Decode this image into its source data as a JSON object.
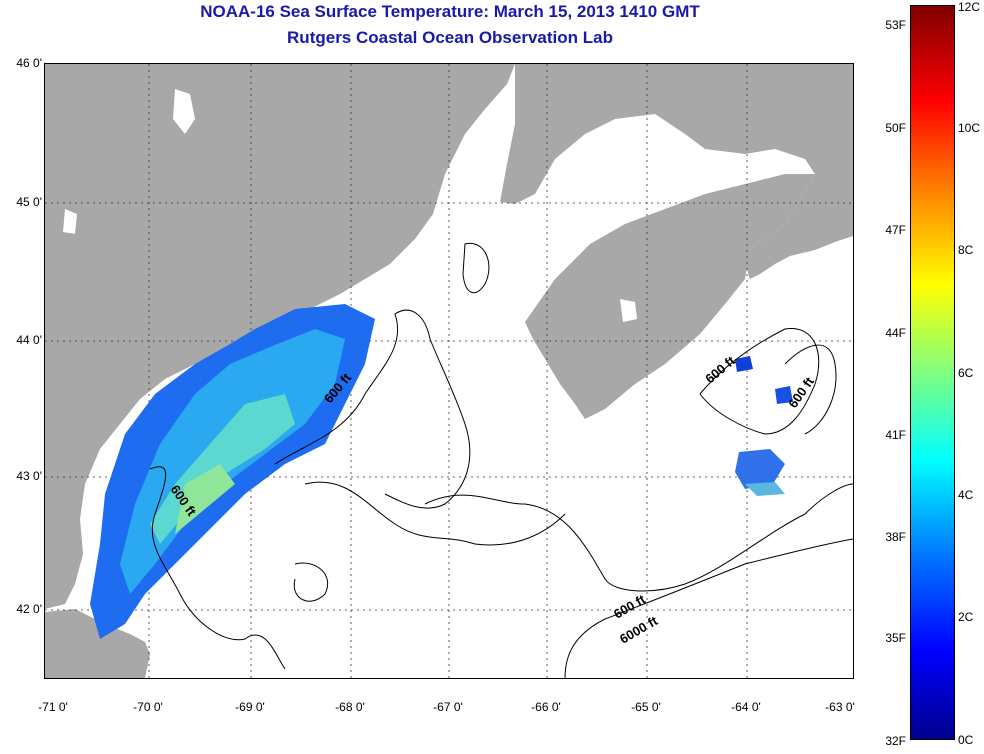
{
  "title": {
    "line1": "NOAA-16 Sea Surface Temperature:  March 15, 2013 1410 GMT",
    "line2": "Rutgers Coastal Ocean Observation Lab"
  },
  "axes": {
    "lat_labels": [
      "46 0'",
      "45 0'",
      "44 0'",
      "43 0'",
      "42 0'"
    ],
    "lon_labels": [
      "-71 0'",
      "-70 0'",
      "-69 0'",
      "-68 0'",
      "-67 0'",
      "-66 0'",
      "-65 0'",
      "-64 0'",
      "-63 0'"
    ]
  },
  "contour_labels": {
    "a": "600 ft",
    "b": "600 ft",
    "c": "600 ft",
    "d": "600 ft",
    "e": "6000 ft",
    "f": "600 ft"
  },
  "colorbar": {
    "fahrenheit": [
      "53F",
      "50F",
      "47F",
      "44F",
      "41F",
      "38F",
      "35F",
      "32F"
    ],
    "celsius": [
      "12C",
      "10C",
      "8C",
      "6C",
      "4C",
      "2C",
      "0C"
    ]
  },
  "colors": {
    "land": "#a8a8a8",
    "title": "#1a1aa8"
  }
}
